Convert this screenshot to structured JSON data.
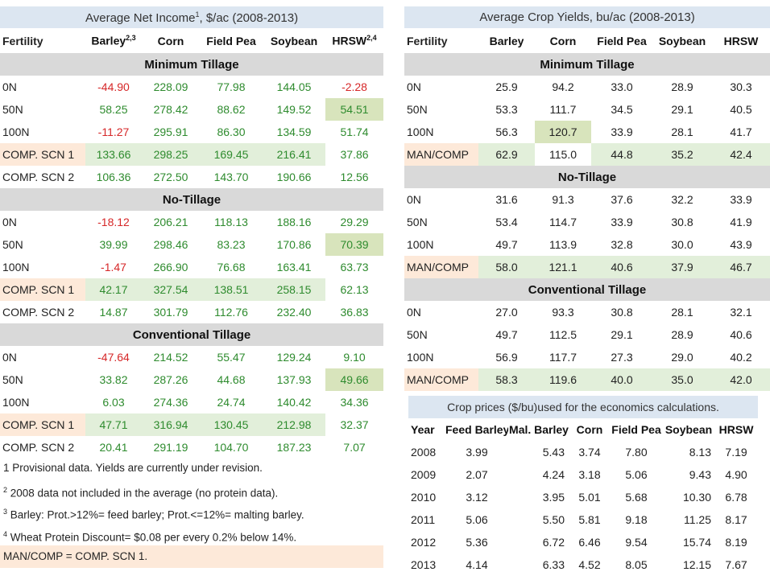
{
  "income": {
    "title": "Average Net Income",
    "title_sup": "1",
    "title_suffix": ", $/ac (2008-2013)",
    "headers": [
      "Fertility",
      "Barley",
      "Corn",
      "Field Pea",
      "Soybean",
      "HRSW"
    ],
    "barley_sup": "2,3",
    "hrsw_sup": "2,4",
    "sections": [
      {
        "name": "Minimum Tillage",
        "rows": [
          {
            "label": "0N",
            "values": [
              "-44.90",
              "228.09",
              "77.98",
              "144.05",
              "-2.28"
            ]
          },
          {
            "label": "50N",
            "values": [
              "58.25",
              "278.42",
              "88.62",
              "149.52",
              "54.51"
            ]
          },
          {
            "label": "100N",
            "values": [
              "-11.27",
              "295.91",
              "86.30",
              "134.59",
              "51.74"
            ]
          },
          {
            "label": "COMP. SCN 1",
            "values": [
              "133.66",
              "298.25",
              "169.45",
              "216.41",
              "37.86"
            ]
          },
          {
            "label": "COMP. SCN 2",
            "values": [
              "106.36",
              "272.50",
              "143.70",
              "190.66",
              "12.56"
            ]
          }
        ]
      },
      {
        "name": "No-Tillage",
        "rows": [
          {
            "label": "0N",
            "values": [
              "-18.12",
              "206.21",
              "118.13",
              "188.16",
              "29.29"
            ]
          },
          {
            "label": "50N",
            "values": [
              "39.99",
              "298.46",
              "83.23",
              "170.86",
              "70.39"
            ]
          },
          {
            "label": "100N",
            "values": [
              "-1.47",
              "266.90",
              "76.68",
              "163.41",
              "63.73"
            ]
          },
          {
            "label": "COMP. SCN 1",
            "values": [
              "42.17",
              "327.54",
              "138.51",
              "258.15",
              "62.13"
            ]
          },
          {
            "label": "COMP. SCN 2",
            "values": [
              "14.87",
              "301.79",
              "112.76",
              "232.40",
              "36.83"
            ]
          }
        ]
      },
      {
        "name": "Conventional Tillage",
        "rows": [
          {
            "label": "0N",
            "values": [
              "-47.64",
              "214.52",
              "55.47",
              "129.24",
              "9.10"
            ]
          },
          {
            "label": "50N",
            "values": [
              "33.82",
              "287.26",
              "44.68",
              "137.93",
              "49.66"
            ]
          },
          {
            "label": "100N",
            "values": [
              "6.03",
              "274.36",
              "24.74",
              "140.42",
              "34.36"
            ]
          },
          {
            "label": "COMP. SCN 1",
            "values": [
              "47.71",
              "316.94",
              "130.45",
              "212.98",
              "32.37"
            ]
          },
          {
            "label": "COMP. SCN 2",
            "values": [
              "20.41",
              "291.19",
              "104.70",
              "187.23",
              "7.07"
            ]
          }
        ]
      }
    ]
  },
  "notes": {
    "n1": "1 Provisional data. Yields are currently under revision.",
    "n2_sup": "2",
    "n2": " 2008 data not included in the average (no protein data).",
    "n3_sup": "3",
    "n3": " Barley: Prot.>12%= feed barley; Prot.<=12%= malting barley.",
    "n4_sup": "4",
    "n4": " Wheat Protein Discount= $0.08 per every 0.2% below 14%.",
    "n5": "MAN/COMP = COMP. SCN 1."
  },
  "yields": {
    "title": "Average Crop Yields, bu/ac (2008-2013)",
    "headers": [
      "Fertility",
      "Barley",
      "Corn",
      "Field Pea",
      "Soybean",
      "HRSW"
    ],
    "sections": [
      {
        "name": "Minimum Tillage",
        "rows": [
          {
            "label": "0N",
            "values": [
              "25.9",
              "94.2",
              "33.0",
              "28.9",
              "30.3"
            ]
          },
          {
            "label": "50N",
            "values": [
              "53.3",
              "111.7",
              "34.5",
              "29.1",
              "40.5"
            ]
          },
          {
            "label": "100N",
            "values": [
              "56.3",
              "120.7",
              "33.9",
              "28.1",
              "41.7"
            ]
          },
          {
            "label": "MAN/COMP",
            "values": [
              "62.9",
              "115.0",
              "44.8",
              "35.2",
              "42.4"
            ]
          }
        ]
      },
      {
        "name": "No-Tillage",
        "rows": [
          {
            "label": "0N",
            "values": [
              "31.6",
              "91.3",
              "37.6",
              "32.2",
              "33.9"
            ]
          },
          {
            "label": "50N",
            "values": [
              "53.4",
              "114.7",
              "33.9",
              "30.8",
              "41.9"
            ]
          },
          {
            "label": "100N",
            "values": [
              "49.7",
              "113.9",
              "32.8",
              "30.0",
              "43.9"
            ]
          },
          {
            "label": "MAN/COMP",
            "values": [
              "58.0",
              "121.1",
              "40.6",
              "37.9",
              "46.7"
            ]
          }
        ]
      },
      {
        "name": "Conventional Tillage",
        "rows": [
          {
            "label": "0N",
            "values": [
              "27.0",
              "93.3",
              "30.8",
              "28.1",
              "32.1"
            ]
          },
          {
            "label": "50N",
            "values": [
              "49.7",
              "112.5",
              "29.1",
              "28.9",
              "40.6"
            ]
          },
          {
            "label": "100N",
            "values": [
              "56.9",
              "117.7",
              "27.3",
              "29.0",
              "40.2"
            ]
          },
          {
            "label": "MAN/COMP",
            "values": [
              "58.3",
              "119.6",
              "40.0",
              "35.0",
              "42.0"
            ]
          }
        ]
      }
    ]
  },
  "prices": {
    "title": "Crop prices ($/bu)used for the economics calculations.",
    "headers": [
      "Year",
      "Feed Barley",
      "Mal. Barley",
      "Corn",
      "Field Pea",
      "Soybean",
      "HRSW"
    ],
    "rows": [
      [
        "2008",
        "3.99",
        "5.43",
        "3.74",
        "7.80",
        "8.13",
        "7.19"
      ],
      [
        "2009",
        "2.07",
        "4.24",
        "3.18",
        "5.06",
        "9.43",
        "4.90"
      ],
      [
        "2010",
        "3.12",
        "3.95",
        "5.01",
        "5.68",
        "10.30",
        "6.78"
      ],
      [
        "2011",
        "5.06",
        "5.50",
        "5.81",
        "9.18",
        "11.25",
        "8.17"
      ],
      [
        "2012",
        "5.36",
        "6.72",
        "6.46",
        "9.54",
        "15.74",
        "8.19"
      ],
      [
        "2013",
        "4.14",
        "6.33",
        "4.52",
        "8.05",
        "12.15",
        "7.67"
      ]
    ]
  },
  "colors": {
    "title_bg": "#dce6f1",
    "section_bg": "#d9d9d9",
    "highlight_peach": "#fde9d9",
    "highlight_green": "#e2efda",
    "negative_text": "#d62728",
    "positive_text": "#2e8b2e"
  }
}
